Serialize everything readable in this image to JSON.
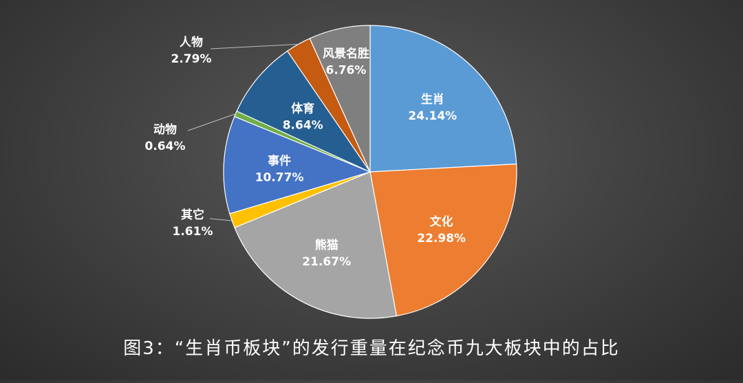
{
  "chart_data": {
    "type": "pie",
    "title": "",
    "start_angle_deg": 0,
    "direction": "clockwise",
    "slices": [
      {
        "label": "生肖",
        "value": 24.14,
        "display": "24.14%",
        "color": "#5b9bd5",
        "label_position": "inside"
      },
      {
        "label": "文化",
        "value": 22.98,
        "display": "22.98%",
        "color": "#ed7d31",
        "label_position": "inside"
      },
      {
        "label": "熊猫",
        "value": 21.67,
        "display": "21.67%",
        "color": "#a5a5a5",
        "label_position": "inside"
      },
      {
        "label": "其它",
        "value": 1.61,
        "display": "1.61%",
        "color": "#ffc000",
        "label_position": "outside"
      },
      {
        "label": "事件",
        "value": 10.77,
        "display": "10.77%",
        "color": "#4472c4",
        "label_position": "inside"
      },
      {
        "label": "动物",
        "value": 0.64,
        "display": "0.64%",
        "color": "#70ad47",
        "label_position": "outside"
      },
      {
        "label": "体育",
        "value": 8.64,
        "display": "8.64%",
        "color": "#255e91",
        "label_position": "inside"
      },
      {
        "label": "人物",
        "value": 2.79,
        "display": "2.79%",
        "color": "#c55a11",
        "label_position": "outside"
      },
      {
        "label": "风景名胜",
        "value": 6.76,
        "display": "6.76%",
        "color": "#7f7f7f",
        "label_position": "inside"
      }
    ]
  },
  "caption": "图3：“生肖币板块”的发行重量在纪念币九大板块中的占比"
}
